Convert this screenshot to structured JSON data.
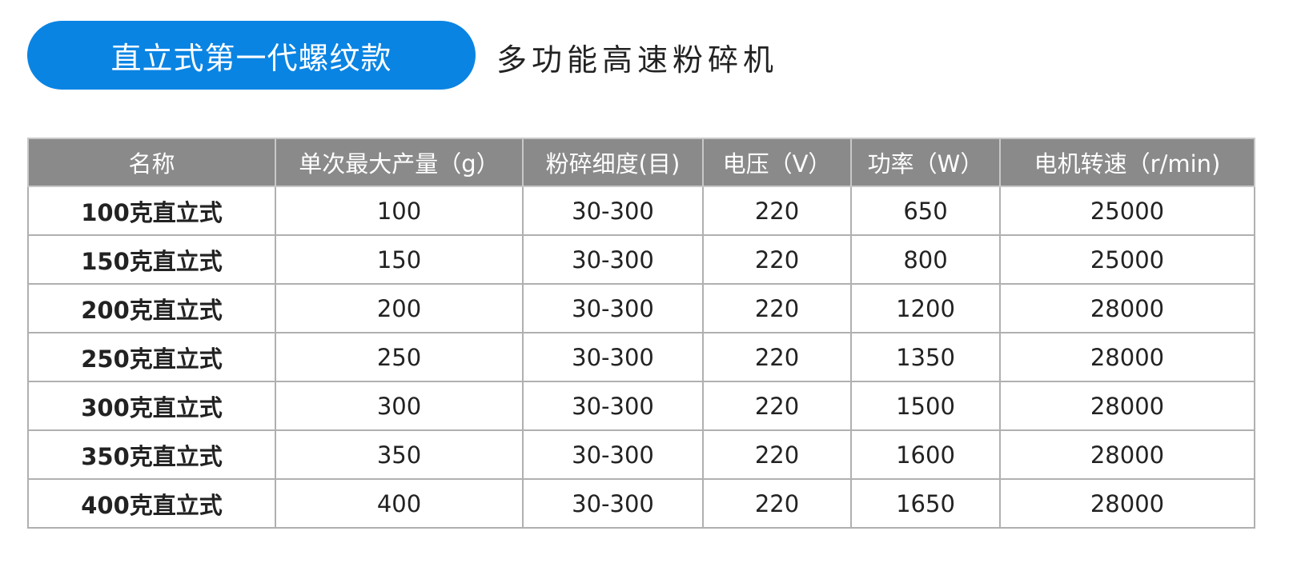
{
  "badge": "直立式第一代螺纹款",
  "subtitle": "多功能高速粉碎机",
  "accent_color": "#0a84e3",
  "table": {
    "headers": [
      "名称",
      "单次最大产量（g）",
      "粉碎细度(目)",
      "电压（V）",
      "功率（W）",
      "电机转速（r/min)"
    ],
    "rows": [
      [
        "100克直立式",
        "100",
        "30-300",
        "220",
        "650",
        "25000"
      ],
      [
        "150克直立式",
        "150",
        "30-300",
        "220",
        "800",
        "25000"
      ],
      [
        "200克直立式",
        "200",
        "30-300",
        "220",
        "1200",
        "28000"
      ],
      [
        "250克直立式",
        "250",
        "30-300",
        "220",
        "1350",
        "28000"
      ],
      [
        "300克直立式",
        "300",
        "30-300",
        "220",
        "1500",
        "28000"
      ],
      [
        "350克直立式",
        "350",
        "30-300",
        "220",
        "1600",
        "28000"
      ],
      [
        "400克直立式",
        "400",
        "30-300",
        "220",
        "1650",
        "28000"
      ]
    ]
  }
}
